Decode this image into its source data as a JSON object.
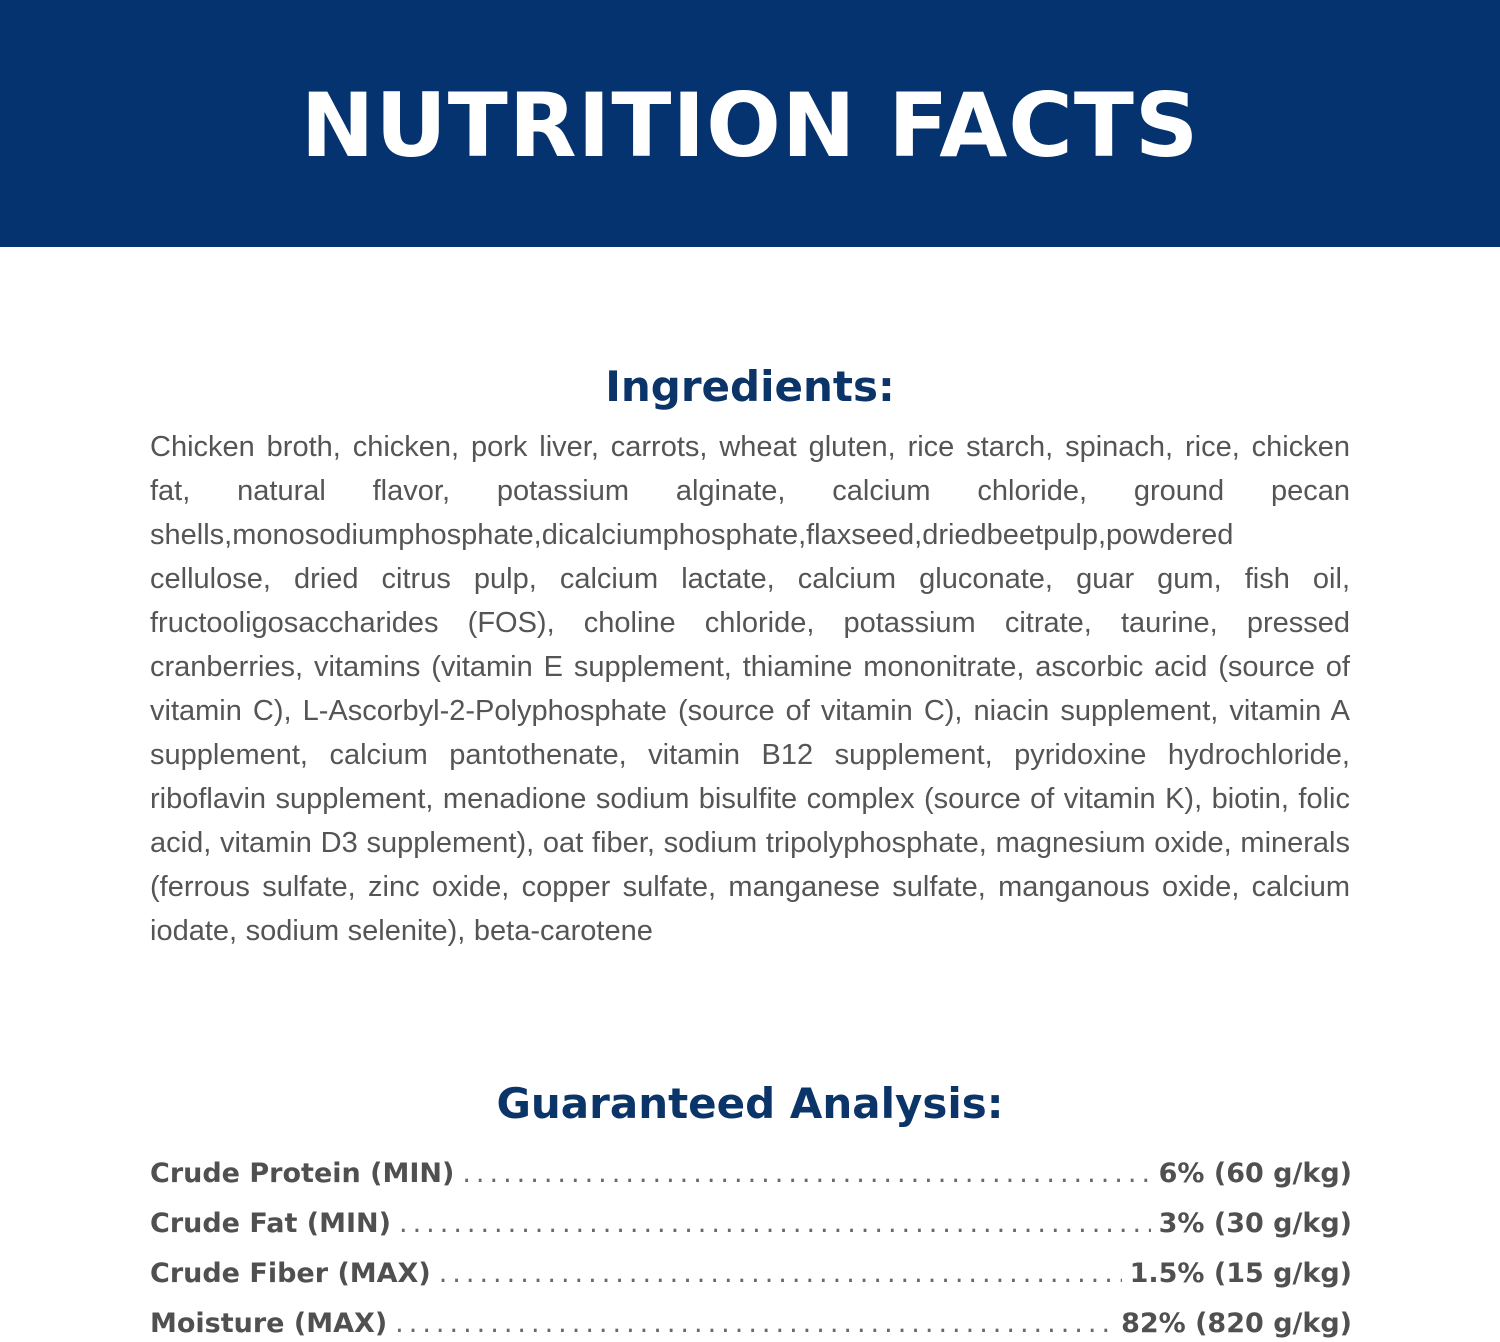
{
  "header": {
    "title": "NUTRITION FACTS",
    "background_color": "#04336f",
    "text_color": "#ffffff"
  },
  "ingredients": {
    "heading": "Ingredients:",
    "text": "Chicken broth, chicken, pork liver, carrots, wheat gluten, rice starch, spinach, rice, chicken fat, natural flavor, potassium alginate, calcium chloride, ground pecan shells,monosodiumphosphate,dicalciumphosphate,flaxseed,driedbeetpulp,powdered cellulose, dried citrus pulp, calcium lactate, calcium gluconate, guar gum, fish oil, fructooligosaccharides (FOS), choline chloride, potassium citrate, taurine, pressed cranberries, vitamins (vitamin E supplement, thiamine mononitrate, ascorbic acid (source of vitamin C), L-Ascorbyl-2-Polyphosphate (source of vitamin C), niacin supplement, vitamin A supplement, calcium pantothenate, vitamin B12 supplement, pyridoxine hydrochloride, riboflavin supplement, menadione sodium bisulfite complex (source of vitamin K), biotin, folic acid, vitamin D3 supplement), oat fiber, sodium tripolyphosphate, magnesium oxide, minerals (ferrous sulfate, zinc oxide, copper sulfate, manganese sulfate, manganous oxide, calcium iodate, sodium selenite), beta-carotene"
  },
  "guaranteed_analysis": {
    "heading": "Guaranteed Analysis:",
    "rows": [
      {
        "label": "Crude Protein (MIN)",
        "value": "6% (60 g/kg)"
      },
      {
        "label": "Crude Fat (MIN)",
        "value": "3% (30 g/kg)"
      },
      {
        "label": "Crude Fiber (MAX)",
        "value": "1.5% (15 g/kg)"
      },
      {
        "label": "Moisture (MAX)",
        "value": "82% (820 g/kg)"
      }
    ]
  },
  "colors": {
    "heading": "#0b3468",
    "body_text": "#555555",
    "analysis_text": "#505050"
  }
}
